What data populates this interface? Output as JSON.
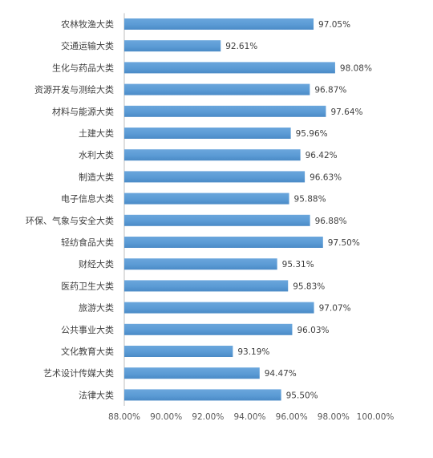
{
  "chart_data": {
    "type": "bar",
    "orientation": "horizontal",
    "categories": [
      "农林牧渔大类",
      "交通运输大类",
      "生化与药品大类",
      "资源开发与测绘大类",
      "材料与能源大类",
      "土建大类",
      "水利大类",
      "制造大类",
      "电子信息大类",
      "环保、气象与安全大类",
      "轻纺食品大类",
      "财经大类",
      "医药卫生大类",
      "旅游大类",
      "公共事业大类",
      "文化教育大类",
      "艺术设计传媒大类",
      "法律大类"
    ],
    "values": [
      97.05,
      92.61,
      98.08,
      96.87,
      97.64,
      95.96,
      96.42,
      96.63,
      95.88,
      96.88,
      97.5,
      95.31,
      95.83,
      97.07,
      96.03,
      93.19,
      94.47,
      95.5
    ],
    "value_labels": [
      "97.05%",
      "92.61%",
      "98.08%",
      "96.87%",
      "97.64%",
      "95.96%",
      "96.42%",
      "96.63%",
      "95.88%",
      "96.88%",
      "97.50%",
      "95.31%",
      "95.83%",
      "97.07%",
      "96.03%",
      "93.19%",
      "94.47%",
      "95.50%"
    ],
    "xlim": [
      88,
      100
    ],
    "xticks": [
      88,
      90,
      92,
      94,
      96,
      98,
      100
    ],
    "xtick_labels": [
      "88.00%",
      "90.00%",
      "92.00%",
      "94.00%",
      "96.00%",
      "98.00%",
      "100.00%"
    ],
    "bar_color": "#5b9bd5",
    "grid": false,
    "legend": "none"
  }
}
